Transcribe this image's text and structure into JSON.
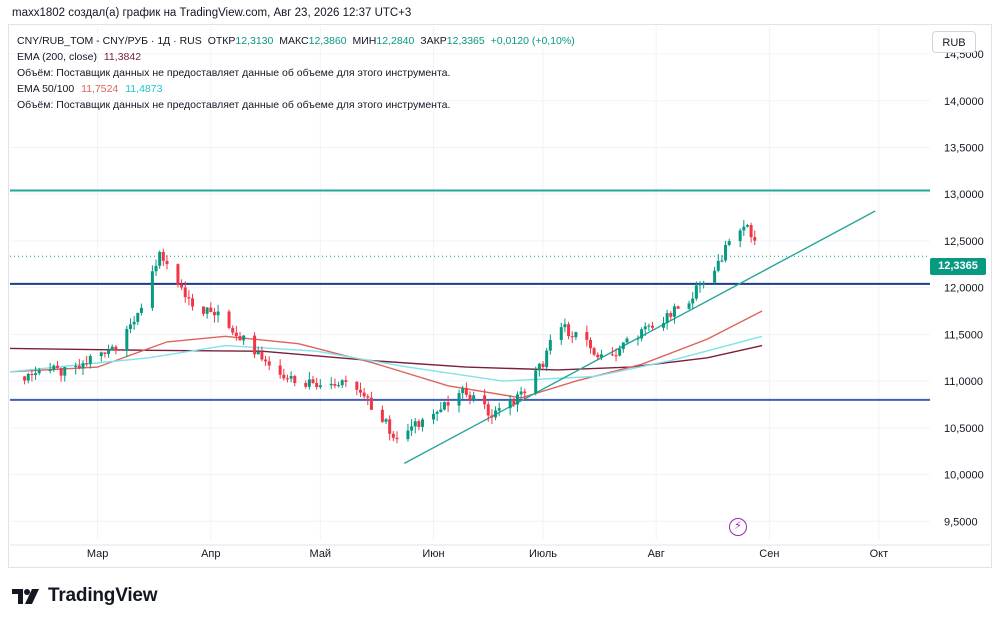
{
  "caption": "maxx1802 создал(а) график на TradingView.com, Авг 23, 2026 12:37 UTC+3",
  "legend": {
    "symbol": "CNY/RUB_TOM - CNY/РУБ · 1Д · RUS",
    "open_label": "ОТКР",
    "open": "12,3130",
    "high_label": "МАКС",
    "high": "12,3860",
    "low_label": "МИН",
    "low": "12,2840",
    "close_label": "ЗАКР",
    "close": "12,3365",
    "change": "+0,0120 (+0,10%)",
    "ema200_label": "EMA (200, close)",
    "ema200_value": "11,3842",
    "volume_note_1": "Объём: Поставщик данных не предоставляет данные об объеме для этого инструмента.",
    "ema50_100_label": "EMA 50/100",
    "ema50_value": "11,7524",
    "ema100_value": "11,4873",
    "volume_note_2": "Объём: Поставщик данных не предоставляет данные об объеме для этого инструмента."
  },
  "currency_button": "RUB",
  "price_tag": "12,3365",
  "event_icon": "lightning-icon",
  "logo_text": "TradingView",
  "colors": {
    "up": "#089981",
    "down": "#f23645",
    "ema200": "#7b1e3a",
    "ema50": "#e0625c",
    "ema100": "#7fe3ea",
    "trendline": "#26a69a",
    "level_top": "#26a69a",
    "level_mid": "#1e3a8a",
    "level_low": "#3b5fc0",
    "grid": "#f0f3fa"
  },
  "chart_data": {
    "type": "candlestick",
    "y_ticks": [
      "14,5000",
      "14,0000",
      "13,5000",
      "13,0000",
      "12,5000",
      "12,0000",
      "11,5000",
      "11,0000",
      "10,5000",
      "10,0000",
      "9,5000"
    ],
    "y_tick_values": [
      14.5,
      14.0,
      13.5,
      13.0,
      12.5,
      12.0,
      11.5,
      11.0,
      10.5,
      10.0,
      9.5
    ],
    "x_ticks": [
      "Мар",
      "Апр",
      "Май",
      "Июн",
      "Июль",
      "Авг",
      "Сен",
      "Окт"
    ],
    "x_tick_dates": [
      "2026-03-01",
      "2026-04-01",
      "2026-05-01",
      "2026-06-01",
      "2026-07-01",
      "2026-08-01",
      "2026-09-01",
      "2026-10-01"
    ],
    "date_range": [
      "2026-02-05",
      "2026-10-15"
    ],
    "ylim": [
      9.3,
      14.8
    ],
    "last_price": 12.3365,
    "horizontal_levels": [
      13.04,
      12.04,
      10.8
    ],
    "trendline": {
      "start": {
        "date": "2026-05-24",
        "value": 10.12
      },
      "end": {
        "date": "2026-09-30",
        "value": 12.82
      }
    },
    "ohlc_anchors": [
      [
        "2026-02-08",
        11.05
      ],
      [
        "2026-02-15",
        11.12
      ],
      [
        "2026-02-22",
        11.08
      ],
      [
        "2026-03-01",
        11.3
      ],
      [
        "2026-03-08",
        11.42
      ],
      [
        "2026-03-14",
        11.9
      ],
      [
        "2026-03-18",
        12.35
      ],
      [
        "2026-03-22",
        12.05
      ],
      [
        "2026-03-28",
        11.8
      ],
      [
        "2026-04-03",
        11.7
      ],
      [
        "2026-04-10",
        11.45
      ],
      [
        "2026-04-18",
        11.15
      ],
      [
        "2026-04-25",
        11.0
      ],
      [
        "2026-05-02",
        10.98
      ],
      [
        "2026-05-09",
        10.95
      ],
      [
        "2026-05-16",
        10.7
      ],
      [
        "2026-05-22",
        10.38
      ],
      [
        "2026-05-30",
        10.6
      ],
      [
        "2026-06-05",
        10.75
      ],
      [
        "2026-06-10",
        10.9
      ],
      [
        "2026-06-17",
        10.62
      ],
      [
        "2026-06-25",
        10.85
      ],
      [
        "2026-07-01",
        11.2
      ],
      [
        "2026-07-05",
        11.6
      ],
      [
        "2026-07-10",
        11.5
      ],
      [
        "2026-07-18",
        11.2
      ],
      [
        "2026-07-26",
        11.5
      ],
      [
        "2026-08-02",
        11.6
      ],
      [
        "2026-08-09",
        11.85
      ],
      [
        "2026-08-15",
        12.1
      ],
      [
        "2026-08-20",
        12.4
      ],
      [
        "2026-08-23",
        12.65
      ],
      [
        "2026-08-26",
        12.66
      ],
      [
        "2026-08-30",
        12.34
      ]
    ],
    "ema_lines": [
      {
        "name": "EMA 200",
        "points": [
          [
            "2026-02-05",
            11.35
          ],
          [
            "2026-03-15",
            11.33
          ],
          [
            "2026-04-15",
            11.32
          ],
          [
            "2026-05-15",
            11.22
          ],
          [
            "2026-06-10",
            11.15
          ],
          [
            "2026-07-05",
            11.12
          ],
          [
            "2026-07-25",
            11.15
          ],
          [
            "2026-08-15",
            11.25
          ],
          [
            "2026-08-30",
            11.38
          ]
        ]
      },
      {
        "name": "EMA 50",
        "points": [
          [
            "2026-02-05",
            11.1
          ],
          [
            "2026-03-01",
            11.15
          ],
          [
            "2026-03-20",
            11.42
          ],
          [
            "2026-04-05",
            11.48
          ],
          [
            "2026-04-25",
            11.4
          ],
          [
            "2026-05-15",
            11.2
          ],
          [
            "2026-06-05",
            10.95
          ],
          [
            "2026-06-25",
            10.82
          ],
          [
            "2026-07-10",
            11.0
          ],
          [
            "2026-07-28",
            11.18
          ],
          [
            "2026-08-15",
            11.45
          ],
          [
            "2026-08-30",
            11.75
          ]
        ]
      },
      {
        "name": "EMA 100",
        "points": [
          [
            "2026-02-05",
            11.1
          ],
          [
            "2026-03-15",
            11.25
          ],
          [
            "2026-04-05",
            11.38
          ],
          [
            "2026-04-30",
            11.32
          ],
          [
            "2026-05-25",
            11.15
          ],
          [
            "2026-06-20",
            11.0
          ],
          [
            "2026-07-15",
            11.05
          ],
          [
            "2026-08-05",
            11.22
          ],
          [
            "2026-08-30",
            11.48
          ]
        ]
      }
    ]
  }
}
